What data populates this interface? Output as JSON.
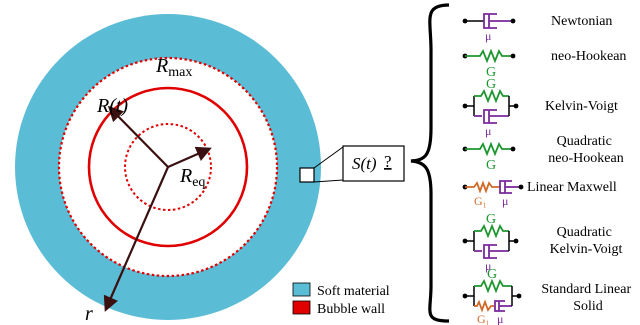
{
  "bubble": {
    "r_max_label": "R",
    "r_max_sub": "max",
    "r_t_label": "R(t)",
    "r_eq_label": "R",
    "r_eq_sub": "eq",
    "r_axis_label": "r",
    "stress_label": "S(t)",
    "stress_query": "?",
    "colors": {
      "soft_material": "#5bbcd6",
      "bubble_wall": "#e00000",
      "arrow": "#3a1010"
    }
  },
  "legend": {
    "items": [
      {
        "label": "Soft material",
        "color": "#5bbcd6"
      },
      {
        "label": "Bubble wall",
        "color": "#e00000"
      }
    ]
  },
  "models": [
    {
      "name": "Newtonian",
      "symbols": [
        "μ"
      ]
    },
    {
      "name": "neo-Hookean",
      "symbols": [
        "G"
      ]
    },
    {
      "name": "Kelvin-Voigt",
      "symbols": [
        "G",
        "μ"
      ]
    },
    {
      "name_line1": "Quadratic",
      "name_line2": "neo-Hookean",
      "symbols": [
        "G"
      ]
    },
    {
      "name": "Linear Maxwell",
      "symbols": [
        "G₁",
        "μ"
      ]
    },
    {
      "name_line1": "Quadratic",
      "name_line2": "Kelvin-Voigt",
      "symbols": [
        "G",
        "μ"
      ]
    },
    {
      "name_line1": "Standard Linear",
      "name_line2": "Solid",
      "symbols": [
        "G",
        "G₁",
        "μ"
      ]
    }
  ],
  "element_colors": {
    "dashpot": "#7a2a9c",
    "spring": "#1e9630",
    "maxwell_spring": "#d06a28",
    "wire": "#000000"
  }
}
